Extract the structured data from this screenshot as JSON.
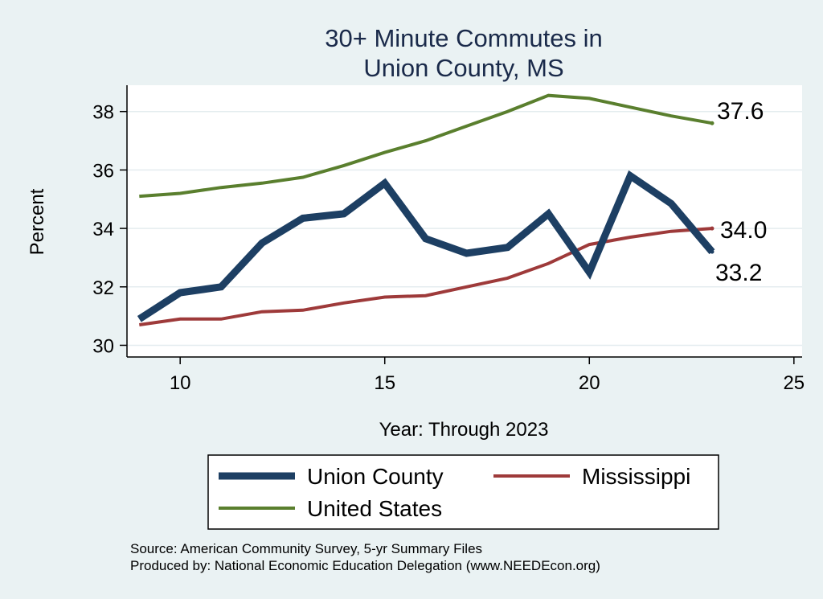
{
  "chart_data": {
    "type": "line",
    "title": [
      "30+ Minute Commutes in",
      "Union County, MS"
    ],
    "xlabel": "Year: Through 2023",
    "ylabel": "Percent",
    "xlim": [
      8.7,
      25.2
    ],
    "ylim": [
      29.6,
      38.9
    ],
    "xticks": [
      10,
      15,
      20,
      25
    ],
    "yticks": [
      30,
      32,
      34,
      36,
      38
    ],
    "grid": true,
    "series": [
      {
        "name": "United States",
        "color": "#5a7f2e",
        "x": [
          9,
          10,
          11,
          12,
          13,
          14,
          15,
          16,
          17,
          18,
          19,
          20,
          21,
          22,
          23
        ],
        "values": [
          35.1,
          35.2,
          35.4,
          35.55,
          35.75,
          36.15,
          36.6,
          37.0,
          37.5,
          38.0,
          38.55,
          38.45,
          38.15,
          37.85,
          37.6
        ],
        "end_label": "37.6"
      },
      {
        "name": "Mississippi",
        "color": "#9e3a3a",
        "x": [
          9,
          10,
          11,
          12,
          13,
          14,
          15,
          16,
          17,
          18,
          19,
          20,
          21,
          22,
          23
        ],
        "values": [
          30.7,
          30.9,
          30.9,
          31.15,
          31.2,
          31.45,
          31.65,
          31.7,
          32.0,
          32.3,
          32.8,
          33.45,
          33.7,
          33.9,
          34.0
        ],
        "end_label": "34.0"
      },
      {
        "name": "Union County",
        "color": "#1d3f63",
        "x": [
          9,
          10,
          11,
          12,
          13,
          14,
          15,
          16,
          17,
          18,
          19,
          20,
          21,
          22,
          23
        ],
        "values": [
          30.9,
          31.8,
          32.0,
          33.5,
          34.35,
          34.5,
          35.55,
          33.65,
          33.15,
          33.35,
          34.5,
          32.5,
          35.8,
          34.85,
          33.2
        ],
        "end_label": "33.2"
      }
    ],
    "legend": [
      {
        "name": "Union County",
        "color": "#1d3f63"
      },
      {
        "name": "Mississippi",
        "color": "#9e3a3a"
      },
      {
        "name": "United States",
        "color": "#5a7f2e"
      }
    ]
  },
  "source": [
    "Source: American Community Survey, 5-yr Summary Files",
    "Produced by: National Economic Education Delegation (www.NEEDEcon.org)"
  ]
}
